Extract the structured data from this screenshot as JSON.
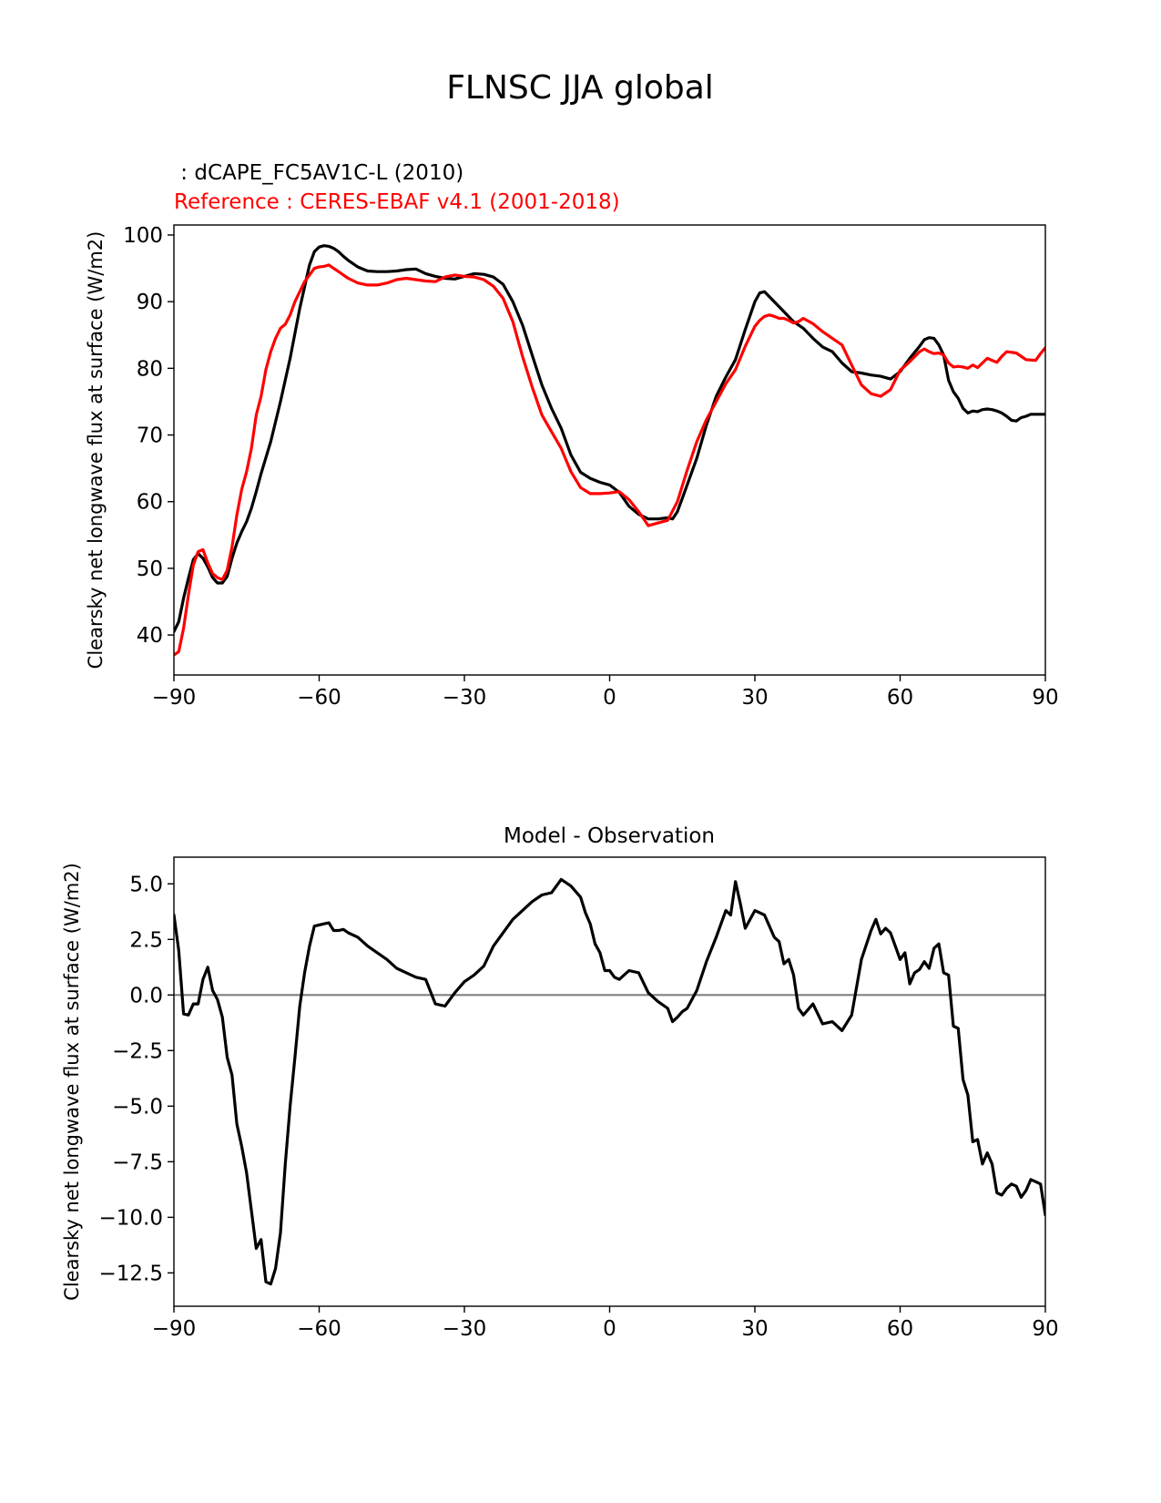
{
  "figure": {
    "title": "FLNSC JJA global"
  },
  "colors": {
    "test": "#000000",
    "reference": "#ff0000",
    "zero_line": "#808080"
  },
  "chart_data": [
    {
      "type": "line",
      "title_test": " : dCAPE_FC5AV1C-L (2010)",
      "title_reference": "Reference : CERES-EBAF v4.1 (2001-2018)",
      "xlabel": "",
      "ylabel": "Clearsky net longwave flux at surface (W/m2)",
      "xlim": [
        -90,
        90
      ],
      "ylim": [
        34,
        101.5
      ],
      "xticks": [
        -90,
        -60,
        -30,
        0,
        30,
        60,
        90
      ],
      "xtick_labels": [
        "−90",
        "−60",
        "−30",
        "0",
        "30",
        "60",
        "90"
      ],
      "yticks": [
        40,
        50,
        60,
        70,
        80,
        90,
        100
      ],
      "ytick_labels": [
        "40",
        "50",
        "60",
        "70",
        "80",
        "90",
        "100"
      ],
      "grid": false,
      "series": [
        {
          "name": "dCAPE_FC5AV1C-L (2010)",
          "color": "#000000",
          "x": [
            -90,
            -89,
            -88,
            -87,
            -86,
            -85,
            -84,
            -83,
            -82,
            -81,
            -80,
            -79,
            -78,
            -77,
            -76,
            -75,
            -74,
            -73,
            -72,
            -70,
            -68,
            -66,
            -64,
            -62,
            -61,
            -60,
            -59,
            -58,
            -57,
            -56,
            -55,
            -54,
            -52,
            -50,
            -48,
            -46,
            -44,
            -42,
            -40,
            -38,
            -36,
            -34,
            -32,
            -30,
            -28,
            -26,
            -24,
            -22,
            -20,
            -18,
            -16,
            -14,
            -12,
            -10,
            -8,
            -6,
            -4,
            -2,
            0,
            2,
            4,
            6,
            8,
            10,
            12,
            13,
            14,
            15,
            16,
            18,
            20,
            22,
            24,
            26,
            28,
            30,
            31,
            32,
            34,
            36,
            38,
            40,
            42,
            44,
            46,
            48,
            50,
            52,
            54,
            56,
            58,
            60,
            62,
            64,
            65,
            66,
            67,
            68,
            69,
            70,
            71,
            72,
            73,
            74,
            75,
            76,
            77,
            78,
            79,
            80,
            81,
            82,
            83,
            84,
            85,
            86,
            87,
            88,
            89,
            90
          ],
          "y": [
            40.5,
            42,
            45.5,
            48.5,
            51.3,
            52.2,
            51.5,
            50.2,
            48.6,
            47.8,
            47.8,
            48.8,
            51.5,
            53.8,
            55.5,
            57,
            59,
            61.5,
            64.2,
            69,
            75,
            81.5,
            89,
            95.5,
            97.5,
            98.2,
            98.4,
            98.3,
            98,
            97.5,
            96.8,
            96.2,
            95.2,
            94.6,
            94.5,
            94.5,
            94.6,
            94.8,
            94.9,
            94.2,
            93.8,
            93.5,
            93.4,
            93.8,
            94.2,
            94.1,
            93.7,
            92.6,
            90,
            86.5,
            82,
            77.5,
            74,
            71,
            67,
            64.4,
            63.5,
            62.9,
            62.5,
            61.4,
            59.3,
            58.1,
            57.4,
            57.4,
            57.6,
            57.4,
            58.5,
            60.5,
            62.5,
            66.5,
            71.5,
            75.8,
            78.7,
            81.3,
            85.8,
            90,
            91.3,
            91.5,
            90,
            88.5,
            87,
            86,
            84.5,
            83.2,
            82.5,
            80.8,
            79.5,
            79.3,
            79,
            78.8,
            78.4,
            79.5,
            81.5,
            83.3,
            84.3,
            84.6,
            84.5,
            83.5,
            82,
            78.2,
            76.5,
            75.5,
            74,
            73.3,
            73.6,
            73.5,
            73.8,
            73.9,
            73.8,
            73.6,
            73.3,
            72.8,
            72.2,
            72.1,
            72.6,
            72.8,
            73.1,
            73.1,
            73.1,
            73.1
          ]
        },
        {
          "name": "CERES-EBAF v4.1 (2001-2018)",
          "color": "#ff0000",
          "x": [
            -90,
            -89,
            -88,
            -87,
            -86,
            -85,
            -84,
            -83,
            -82,
            -81,
            -80,
            -79,
            -78,
            -77,
            -76,
            -75,
            -74,
            -73,
            -72,
            -71,
            -70,
            -69,
            -68,
            -67,
            -66,
            -65,
            -64,
            -63,
            -62,
            -61,
            -60,
            -59,
            -58,
            -57,
            -56,
            -55,
            -54,
            -52,
            -50,
            -48,
            -46,
            -44,
            -42,
            -40,
            -38,
            -36,
            -34,
            -32,
            -30,
            -28,
            -26,
            -24,
            -22,
            -20,
            -18,
            -16,
            -14,
            -12,
            -10,
            -8,
            -6,
            -4,
            -2,
            0,
            2,
            4,
            6,
            8,
            10,
            12,
            14,
            16,
            18,
            20,
            22,
            24,
            26,
            28,
            30,
            31,
            32,
            33,
            34,
            35,
            36,
            37,
            38,
            39,
            40,
            42,
            44,
            46,
            48,
            50,
            52,
            54,
            56,
            58,
            60,
            62,
            64,
            65,
            66,
            67,
            68,
            69,
            70,
            71,
            72,
            73,
            74,
            75,
            76,
            77,
            78,
            79,
            80,
            81,
            82,
            84,
            86,
            88,
            89,
            90
          ],
          "y": [
            37,
            37.5,
            41,
            46,
            50.5,
            52.5,
            52.8,
            50.8,
            49.2,
            48.6,
            48.3,
            49.7,
            53.2,
            58,
            61.8,
            64.5,
            68,
            73,
            75.8,
            79.8,
            82.5,
            84.5,
            86,
            86.6,
            88,
            90,
            91.5,
            93,
            94,
            95,
            95.2,
            95.3,
            95.5,
            95,
            94.5,
            94,
            93.5,
            92.8,
            92.5,
            92.5,
            92.8,
            93.3,
            93.5,
            93.3,
            93.1,
            93,
            93.7,
            94,
            93.8,
            93.7,
            93.3,
            92.3,
            90.5,
            87,
            81.8,
            77.2,
            73,
            70.5,
            68,
            64.5,
            62.1,
            61.2,
            61.2,
            61.3,
            61.5,
            60.3,
            58.5,
            56.4,
            56.8,
            57.2,
            60,
            64.7,
            69,
            72.3,
            75,
            77.7,
            79.8,
            83.3,
            86.3,
            87.2,
            87.8,
            88,
            87.8,
            87.5,
            87.5,
            87.2,
            86.8,
            87,
            87.5,
            86.7,
            85.5,
            84.5,
            83.5,
            80.5,
            77.5,
            76.2,
            75.8,
            76.8,
            79.7,
            81,
            82.5,
            82.9,
            82.5,
            82.2,
            82.3,
            82,
            80.8,
            80.2,
            80.3,
            80.2,
            80,
            80.5,
            80.1,
            80.8,
            81.5,
            81.2,
            80.9,
            81.8,
            82.5,
            82.3,
            81.3,
            81.2,
            82.2,
            83.1
          ]
        }
      ]
    },
    {
      "type": "line",
      "title": "Model - Observation",
      "xlabel": "",
      "ylabel": "Clearsky net longwave flux at surface (W/m2)",
      "xlim": [
        -90,
        90
      ],
      "ylim": [
        -14,
        6.2
      ],
      "xticks": [
        -90,
        -60,
        -30,
        0,
        30,
        60,
        90
      ],
      "xtick_labels": [
        "−90",
        "−60",
        "−30",
        "0",
        "30",
        "60",
        "90"
      ],
      "yticks": [
        5,
        2.5,
        0,
        -2.5,
        -5,
        -7.5,
        -10,
        -12.5
      ],
      "ytick_labels": [
        "5.0",
        "2.5",
        "0.0",
        "−2.5",
        "−5.0",
        "−7.5",
        "−10.0",
        "−12.5"
      ],
      "grid": false,
      "zero_line": 0,
      "series": [
        {
          "color": "#000000",
          "x": [
            -90,
            -89,
            -88,
            -87,
            -86,
            -85,
            -84,
            -83,
            -82,
            -81,
            -80,
            -79,
            -78,
            -77,
            -76,
            -75,
            -74,
            -73,
            -72,
            -71,
            -70,
            -69,
            -68,
            -67,
            -66,
            -65,
            -64,
            -63,
            -62,
            -61,
            -60,
            -59,
            -58,
            -57,
            -56,
            -55,
            -54,
            -52,
            -50,
            -48,
            -46,
            -44,
            -42,
            -40,
            -38,
            -36,
            -34,
            -32,
            -30,
            -28,
            -26,
            -24,
            -22,
            -20,
            -18,
            -16,
            -14,
            -12,
            -10,
            -8,
            -6,
            -5,
            -4,
            -3,
            -2,
            -1,
            0,
            1,
            2,
            4,
            6,
            8,
            10,
            12,
            13,
            14,
            15,
            16,
            18,
            20,
            22,
            24,
            25,
            26,
            27,
            28,
            30,
            32,
            34,
            35,
            36,
            37,
            38,
            39,
            40,
            42,
            44,
            46,
            48,
            50,
            52,
            54,
            55,
            56,
            57,
            58,
            59,
            60,
            61,
            62,
            63,
            64,
            65,
            66,
            67,
            68,
            69,
            70,
            71,
            72,
            73,
            74,
            75,
            76,
            77,
            78,
            79,
            80,
            81,
            82,
            83,
            84,
            85,
            86,
            87,
            88,
            89,
            90
          ],
          "y": [
            3.6,
            2.0,
            -0.85,
            -0.9,
            -0.4,
            -0.4,
            0.7,
            1.25,
            0.2,
            -0.2,
            -1.0,
            -2.8,
            -3.6,
            -5.8,
            -6.8,
            -8.0,
            -9.7,
            -11.4,
            -11.0,
            -12.9,
            -13.0,
            -12.3,
            -10.7,
            -7.6,
            -5.0,
            -2.8,
            -0.5,
            1.0,
            2.2,
            3.1,
            3.15,
            3.2,
            3.25,
            2.9,
            2.9,
            2.95,
            2.8,
            2.6,
            2.2,
            1.9,
            1.6,
            1.2,
            1.0,
            0.8,
            0.7,
            -0.4,
            -0.5,
            0.1,
            0.6,
            0.9,
            1.3,
            2.2,
            2.8,
            3.4,
            3.8,
            4.2,
            4.5,
            4.6,
            5.2,
            4.9,
            4.4,
            3.7,
            3.2,
            2.3,
            1.9,
            1.1,
            1.1,
            0.8,
            0.7,
            1.1,
            1.0,
            0.1,
            -0.3,
            -0.6,
            -1.2,
            -1.0,
            -0.75,
            -0.6,
            0.2,
            1.5,
            2.6,
            3.8,
            3.6,
            5.1,
            4.1,
            3.0,
            3.8,
            3.6,
            2.6,
            2.4,
            1.4,
            1.6,
            0.9,
            -0.6,
            -0.9,
            -0.4,
            -1.3,
            -1.2,
            -1.6,
            -0.9,
            1.6,
            2.9,
            3.4,
            2.75,
            3.0,
            2.8,
            2.2,
            1.6,
            1.9,
            0.5,
            1.0,
            1.15,
            1.5,
            1.2,
            2.1,
            2.3,
            1.0,
            0.9,
            -1.4,
            -1.5,
            -3.8,
            -4.5,
            -6.6,
            -6.5,
            -7.6,
            -7.1,
            -7.6,
            -8.9,
            -9.0,
            -8.7,
            -8.5,
            -8.6,
            -9.1,
            -8.8,
            -8.3,
            -8.4,
            -8.5,
            -9.9
          ]
        }
      ]
    }
  ]
}
